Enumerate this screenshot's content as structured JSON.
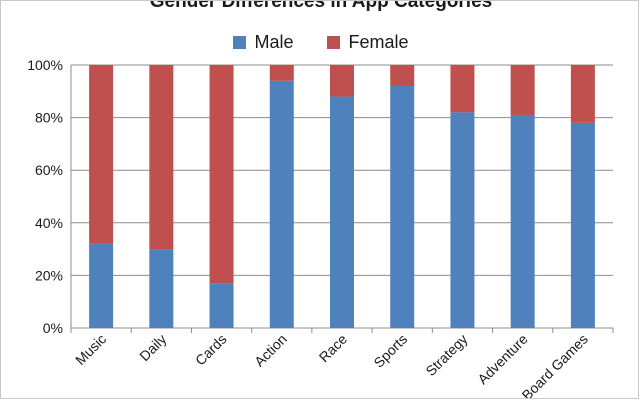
{
  "chart_data": {
    "type": "bar",
    "stacked": true,
    "title": "Gender Differences in App Categories",
    "categories": [
      "Music",
      "Daily",
      "Cards",
      "Action",
      "Race",
      "Sports",
      "Strategy",
      "Adventure",
      "Board Games"
    ],
    "series": [
      {
        "name": "Male",
        "values": [
          32,
          30,
          17,
          94,
          88,
          92,
          82,
          81,
          78
        ],
        "color": "#4f81bd"
      },
      {
        "name": "Female",
        "values": [
          68,
          70,
          83,
          6,
          12,
          8,
          18,
          19,
          22
        ],
        "color": "#c0504d"
      }
    ],
    "ylim": [
      0,
      100
    ],
    "yticks": [
      "0%",
      "20%",
      "40%",
      "60%",
      "80%",
      "100%"
    ],
    "grid": true,
    "legend": "top"
  }
}
